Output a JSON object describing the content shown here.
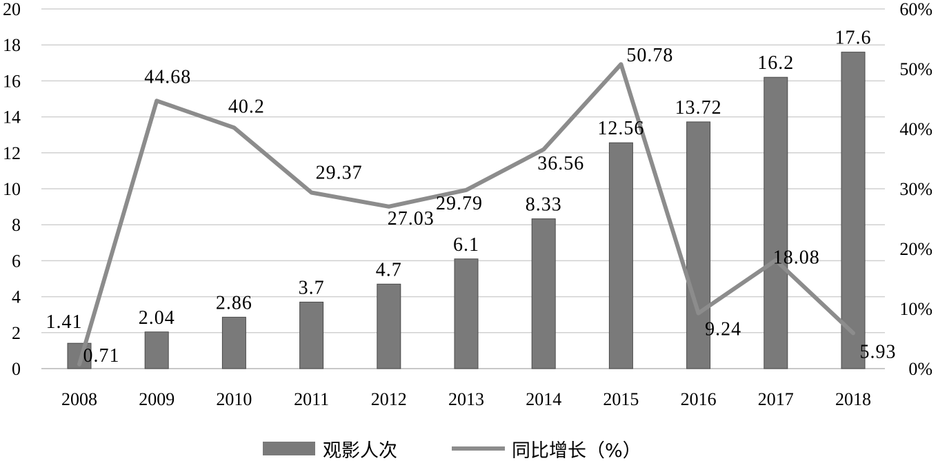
{
  "chart_data": {
    "type": "bar",
    "categories": [
      "2008",
      "2009",
      "2010",
      "2011",
      "2012",
      "2013",
      "2014",
      "2015",
      "2016",
      "2017",
      "2018"
    ],
    "series": [
      {
        "name": "观影人次",
        "type": "bar",
        "axis": "left",
        "values": [
          1.41,
          2.04,
          2.86,
          3.7,
          4.7,
          6.1,
          8.33,
          12.56,
          13.72,
          16.2,
          17.6
        ],
        "labels": [
          "1.41",
          "2.04",
          "2.86",
          "3.7",
          "4.7",
          "6.1",
          "8.33",
          "12.56",
          "13.72",
          "16.2",
          "17.6"
        ],
        "color": "#7a7a7a"
      },
      {
        "name": "同比增长（%）",
        "type": "line",
        "axis": "right",
        "values": [
          0.71,
          44.68,
          40.2,
          29.37,
          27.03,
          29.79,
          36.56,
          50.78,
          9.24,
          18.08,
          5.93
        ],
        "labels": [
          "0.71",
          "44.68",
          "40.2",
          "29.37",
          "27.03",
          "29.79",
          "36.56",
          "50.78",
          "9.24",
          "18.08",
          "5.93"
        ],
        "color": "#8c8c8c"
      }
    ],
    "y_left": {
      "ylim": [
        0,
        20
      ],
      "ticks": [
        0,
        2,
        4,
        6,
        8,
        10,
        12,
        14,
        16,
        18,
        20
      ],
      "tick_labels": [
        "0",
        "2",
        "4",
        "6",
        "8",
        "10",
        "12",
        "14",
        "16",
        "18",
        "20"
      ]
    },
    "y_right": {
      "ylim": [
        0,
        60
      ],
      "ticks": [
        0,
        10,
        20,
        30,
        40,
        50,
        60
      ],
      "tick_labels": [
        "0%",
        "10%",
        "20%",
        "30%",
        "40%",
        "50%",
        "60%"
      ]
    },
    "grid": true,
    "legend_position": "bottom",
    "title": "",
    "xlabel": "",
    "ylabel": ""
  }
}
